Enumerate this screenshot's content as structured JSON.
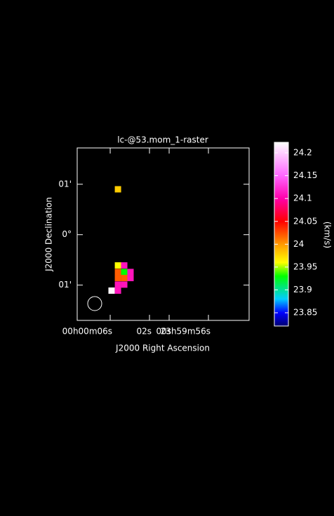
{
  "chart_data": {
    "type": "image",
    "title": "lc-@53.mom_1-raster",
    "x_label": "J2000 Right Ascension",
    "y_label": "J2000 Declination",
    "colorbar_label": "(km/s)",
    "xlim": [
      9.36,
      -8.14
    ],
    "xticks": [
      {
        "value": 6,
        "label": "00h00m06s"
      },
      {
        "value": 2,
        "label": "02s"
      },
      {
        "value": 0,
        "label": "00s"
      },
      {
        "value": -4,
        "label": "23h59m56s"
      }
    ],
    "ylim": [
      -1.7,
      1.72
    ],
    "yticks": [
      {
        "value": 1,
        "label": "01'"
      },
      {
        "value": 0,
        "label": "0°"
      },
      {
        "value": -1,
        "label": "01'"
      }
    ],
    "clim": [
      23.821,
      24.223
    ],
    "cticks": [
      23.85,
      23.9,
      23.95,
      24,
      24.05,
      24.1,
      24.15,
      24.2
    ],
    "colormap": [
      {
        "value": 23.821,
        "color": "#000070"
      },
      {
        "value": 23.85,
        "color": "#0000ff"
      },
      {
        "value": 23.88,
        "color": "#00ccff"
      },
      {
        "value": 23.93,
        "color": "#00ff00"
      },
      {
        "value": 23.96,
        "color": "#ffff00"
      },
      {
        "value": 24.0,
        "color": "#ff9900"
      },
      {
        "value": 24.05,
        "color": "#ff0000"
      },
      {
        "value": 24.1,
        "color": "#ff00aa"
      },
      {
        "value": 24.15,
        "color": "#ff66ff"
      },
      {
        "value": 24.223,
        "color": "#ffffff"
      }
    ],
    "pixels": [
      {
        "x": 5.21,
        "y": 0.9,
        "value": 23.98
      },
      {
        "x": 5.21,
        "y": -0.61,
        "value": 23.96
      },
      {
        "x": 4.57,
        "y": -0.61,
        "value": 24.11
      },
      {
        "x": 5.21,
        "y": -0.74,
        "value": 24.02
      },
      {
        "x": 4.57,
        "y": -0.74,
        "value": 23.93
      },
      {
        "x": 3.93,
        "y": -0.74,
        "value": 24.11
      },
      {
        "x": 5.21,
        "y": -0.86,
        "value": 24.02
      },
      {
        "x": 4.57,
        "y": -0.86,
        "value": 24.02
      },
      {
        "x": 3.93,
        "y": -0.86,
        "value": 24.11
      },
      {
        "x": 5.21,
        "y": -0.99,
        "value": 24.11
      },
      {
        "x": 4.57,
        "y": -0.99,
        "value": 24.11
      },
      {
        "x": 5.86,
        "y": -1.11,
        "value": 24.22
      },
      {
        "x": 5.21,
        "y": -1.11,
        "value": 24.11
      }
    ]
  }
}
